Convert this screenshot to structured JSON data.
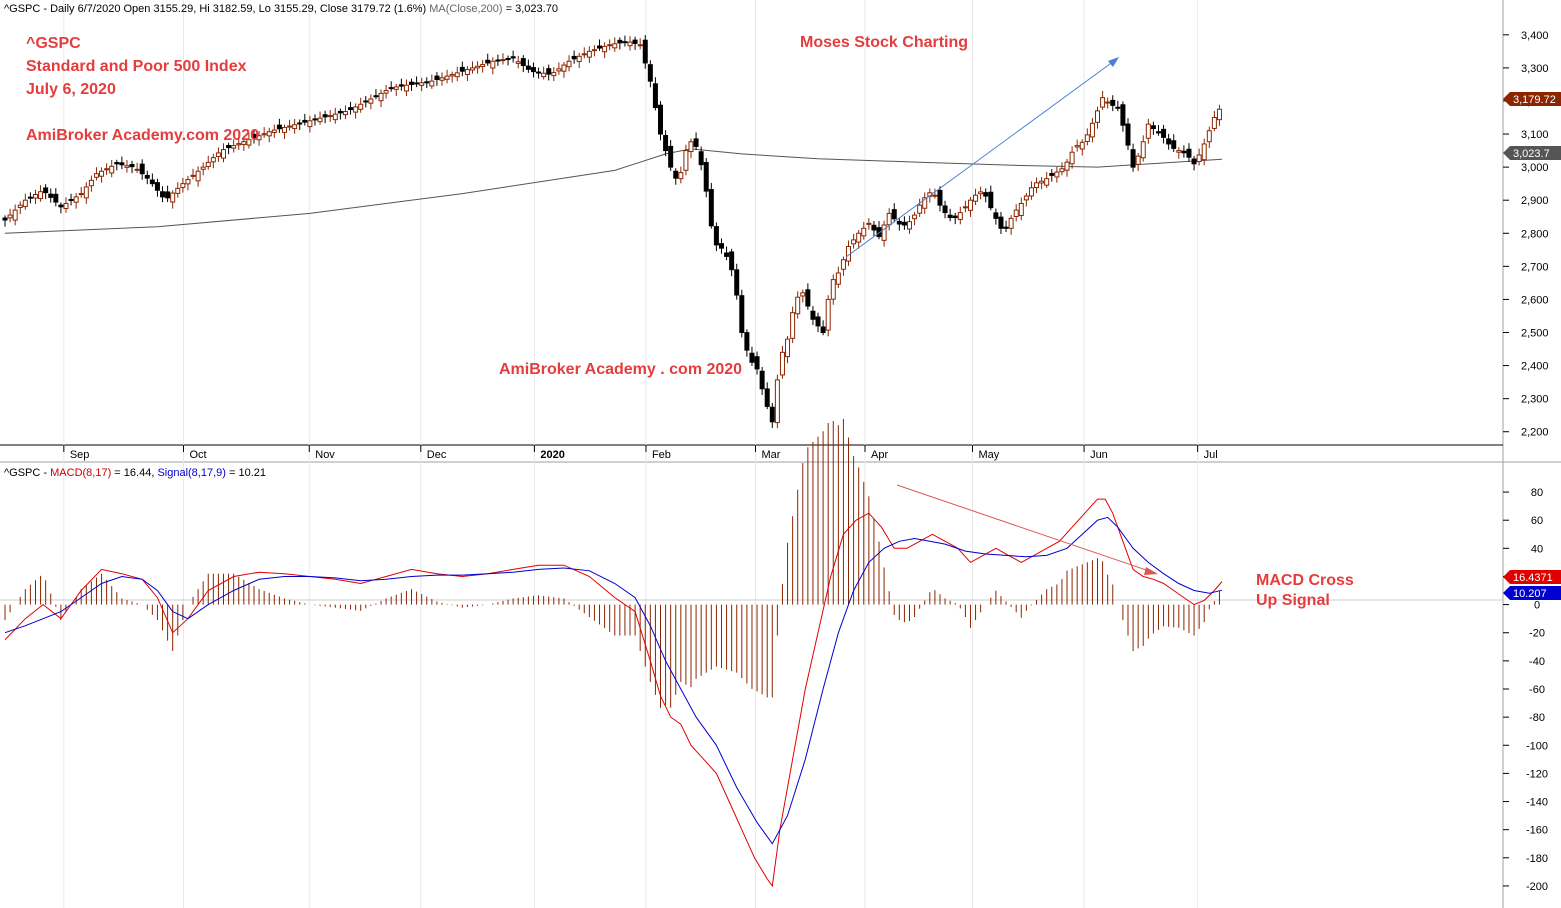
{
  "header": {
    "price_title": "^GSPC - Daily 6/7/2020 Open 3155.29, Hi 3182.59, Lo 3155.29, Close 3179.72 (1.6%)",
    "ma_label": "MA(Close,200)",
    "ma_value": " = 3,023.70",
    "macd_ticker": "^GSPC - ",
    "macd_label": "MACD(8,17)",
    "macd_value": " = 16.44, ",
    "signal_label": "Signal(8,17,9)",
    "signal_value": " = 10.21"
  },
  "annotations": {
    "ticker": "^GSPC",
    "index_name": "Standard and Poor 500 Index",
    "date": "July 6, 2020",
    "brand_top": "AmiBroker Academy.com  2020",
    "brand_top_right": "Moses Stock Charting",
    "brand_center": "AmiBroker Academy . com  2020",
    "macd_note_1": "MACD Cross",
    "macd_note_2": "Up Signal"
  },
  "badges": {
    "last_price": "3,179.72",
    "ma_last": "3,023.7",
    "macd_last": "16.4371",
    "signal_last": "10.207"
  },
  "colors": {
    "up_candle": "#8b2500",
    "down_candle": "#000000",
    "ma_line": "#555555",
    "macd_line": "#e00000",
    "signal_line": "#0000d0",
    "histogram": "#8b2500",
    "annotation": "#e53d3d",
    "trend_up_arrow": "#4a7fd4",
    "trend_down_arrow": "#e05555"
  },
  "chart_data": [
    {
      "type": "candlestick",
      "title": "^GSPC Daily",
      "x_labels": [
        "Sep",
        "Oct",
        "Nov",
        "Dec",
        "2020",
        "Feb",
        "Mar",
        "Apr",
        "May",
        "Jun",
        "Jul"
      ],
      "y_ticks": [
        "3,400",
        "3,300",
        "3,200",
        "3,100",
        "3,000",
        "2,900",
        "2,800",
        "2,700",
        "2,600",
        "2,500",
        "2,400",
        "2,300",
        "2,200"
      ],
      "ylim": [
        2175,
        3475
      ],
      "close_path": [
        [
          0,
          2840
        ],
        [
          8,
          2900
        ],
        [
          15,
          2930
        ],
        [
          22,
          2880
        ],
        [
          30,
          2920
        ],
        [
          36,
          2980
        ],
        [
          44,
          3010
        ],
        [
          51,
          3000
        ],
        [
          57,
          2960
        ],
        [
          63,
          2900
        ],
        [
          70,
          2950
        ],
        [
          78,
          3000
        ],
        [
          85,
          3050
        ],
        [
          95,
          3080
        ],
        [
          105,
          3110
        ],
        [
          115,
          3130
        ],
        [
          125,
          3150
        ],
        [
          135,
          3170
        ],
        [
          145,
          3210
        ],
        [
          152,
          3240
        ],
        [
          160,
          3250
        ],
        [
          168,
          3260
        ],
        [
          176,
          3280
        ],
        [
          184,
          3300
        ],
        [
          192,
          3320
        ],
        [
          200,
          3330
        ],
        [
          207,
          3290
        ],
        [
          215,
          3280
        ],
        [
          222,
          3320
        ],
        [
          230,
          3350
        ],
        [
          238,
          3370
        ],
        [
          245,
          3380
        ],
        [
          250,
          3370
        ],
        [
          254,
          3260
        ],
        [
          258,
          3100
        ],
        [
          262,
          3000
        ],
        [
          265,
          2950
        ],
        [
          268,
          3050
        ],
        [
          271,
          3090
        ],
        [
          275,
          2980
        ],
        [
          279,
          2770
        ],
        [
          283,
          2750
        ],
        [
          287,
          2670
        ],
        [
          290,
          2500
        ],
        [
          293,
          2420
        ],
        [
          296,
          2390
        ],
        [
          299,
          2300
        ],
        [
          302,
          2230
        ],
        [
          305,
          2420
        ],
        [
          308,
          2480
        ],
        [
          311,
          2600
        ],
        [
          314,
          2620
        ],
        [
          318,
          2540
        ],
        [
          322,
          2500
        ],
        [
          325,
          2650
        ],
        [
          328,
          2680
        ],
        [
          332,
          2760
        ],
        [
          336,
          2800
        ],
        [
          340,
          2830
        ],
        [
          344,
          2790
        ],
        [
          348,
          2860
        ],
        [
          353,
          2820
        ],
        [
          357,
          2840
        ],
        [
          361,
          2900
        ],
        [
          365,
          2930
        ],
        [
          369,
          2870
        ],
        [
          373,
          2840
        ],
        [
          377,
          2870
        ],
        [
          381,
          2910
        ],
        [
          385,
          2930
        ],
        [
          389,
          2860
        ],
        [
          393,
          2800
        ],
        [
          397,
          2860
        ],
        [
          401,
          2900
        ],
        [
          405,
          2950
        ],
        [
          409,
          2960
        ],
        [
          413,
          2980
        ],
        [
          417,
          3000
        ],
        [
          421,
          3060
        ],
        [
          425,
          3080
        ],
        [
          429,
          3150
        ],
        [
          432,
          3210
        ],
        [
          435,
          3190
        ],
        [
          438,
          3180
        ],
        [
          441,
          3100
        ],
        [
          444,
          3000
        ],
        [
          447,
          3050
        ],
        [
          450,
          3130
        ],
        [
          453,
          3110
        ],
        [
          456,
          3090
        ],
        [
          459,
          3060
        ],
        [
          462,
          3050
        ],
        [
          465,
          3040
        ],
        [
          468,
          3010
        ],
        [
          471,
          3050
        ],
        [
          474,
          3110
        ],
        [
          477,
          3170
        ],
        [
          479,
          3180
        ]
      ]
    },
    {
      "type": "line",
      "title": "MA(Close,200)",
      "path": [
        [
          0,
          2800
        ],
        [
          60,
          2820
        ],
        [
          120,
          2860
        ],
        [
          180,
          2920
        ],
        [
          240,
          2990
        ],
        [
          260,
          3040
        ],
        [
          270,
          3055
        ],
        [
          290,
          3040
        ],
        [
          320,
          3025
        ],
        [
          360,
          3015
        ],
        [
          400,
          3005
        ],
        [
          430,
          3000
        ],
        [
          479,
          3024
        ]
      ]
    },
    {
      "type": "line",
      "title": "MACD(8,17) / Signal(8,17,9)",
      "y_ticks": [
        "80",
        "60",
        "40",
        "20",
        "0",
        "-20",
        "-40",
        "-60",
        "-80",
        "-100",
        "-120",
        "-140",
        "-160",
        "-180",
        "-200"
      ],
      "ylim": [
        -210,
        90
      ],
      "series": [
        {
          "name": "MACD(8,17)",
          "values": [
            [
              0,
              -25
            ],
            [
              8,
              -10
            ],
            [
              15,
              0
            ],
            [
              22,
              -10
            ],
            [
              30,
              10
            ],
            [
              38,
              25
            ],
            [
              46,
              22
            ],
            [
              54,
              18
            ],
            [
              60,
              5
            ],
            [
              66,
              -20
            ],
            [
              72,
              -10
            ],
            [
              80,
              10
            ],
            [
              90,
              20
            ],
            [
              100,
              23
            ],
            [
              110,
              22
            ],
            [
              120,
              20
            ],
            [
              130,
              18
            ],
            [
              140,
              15
            ],
            [
              150,
              20
            ],
            [
              160,
              25
            ],
            [
              170,
              22
            ],
            [
              180,
              20
            ],
            [
              190,
              22
            ],
            [
              200,
              25
            ],
            [
              210,
              28
            ],
            [
              220,
              28
            ],
            [
              230,
              20
            ],
            [
              240,
              5
            ],
            [
              248,
              -5
            ],
            [
              254,
              -40
            ],
            [
              258,
              -65
            ],
            [
              262,
              -80
            ],
            [
              266,
              -85
            ],
            [
              270,
              -100
            ],
            [
              275,
              -110
            ],
            [
              280,
              -120
            ],
            [
              285,
              -140
            ],
            [
              290,
              -160
            ],
            [
              295,
              -180
            ],
            [
              300,
              -195
            ],
            [
              302,
              -200
            ],
            [
              305,
              -160
            ],
            [
              310,
              -110
            ],
            [
              315,
              -60
            ],
            [
              320,
              -20
            ],
            [
              325,
              20
            ],
            [
              330,
              50
            ],
            [
              335,
              60
            ],
            [
              340,
              65
            ],
            [
              345,
              55
            ],
            [
              350,
              40
            ],
            [
              355,
              40
            ],
            [
              360,
              45
            ],
            [
              365,
              50
            ],
            [
              370,
              45
            ],
            [
              375,
              40
            ],
            [
              380,
              30
            ],
            [
              385,
              35
            ],
            [
              390,
              40
            ],
            [
              395,
              35
            ],
            [
              400,
              30
            ],
            [
              405,
              35
            ],
            [
              410,
              40
            ],
            [
              415,
              45
            ],
            [
              420,
              55
            ],
            [
              425,
              65
            ],
            [
              430,
              75
            ],
            [
              433,
              75
            ],
            [
              436,
              65
            ],
            [
              440,
              45
            ],
            [
              444,
              25
            ],
            [
              448,
              20
            ],
            [
              452,
              18
            ],
            [
              456,
              15
            ],
            [
              460,
              10
            ],
            [
              464,
              5
            ],
            [
              468,
              0
            ],
            [
              472,
              3
            ],
            [
              476,
              10
            ],
            [
              479,
              16.44
            ]
          ]
        },
        {
          "name": "Signal(8,17,9)",
          "values": [
            [
              0,
              -20
            ],
            [
              8,
              -15
            ],
            [
              15,
              -10
            ],
            [
              22,
              -5
            ],
            [
              30,
              5
            ],
            [
              38,
              15
            ],
            [
              46,
              20
            ],
            [
              54,
              18
            ],
            [
              60,
              10
            ],
            [
              66,
              -5
            ],
            [
              72,
              -10
            ],
            [
              80,
              0
            ],
            [
              90,
              10
            ],
            [
              100,
              18
            ],
            [
              110,
              20
            ],
            [
              120,
              20
            ],
            [
              130,
              19
            ],
            [
              140,
              17
            ],
            [
              150,
              18
            ],
            [
              160,
              20
            ],
            [
              170,
              21
            ],
            [
              180,
              21
            ],
            [
              190,
              22
            ],
            [
              200,
              23
            ],
            [
              210,
              25
            ],
            [
              220,
              26
            ],
            [
              230,
              24
            ],
            [
              240,
              15
            ],
            [
              248,
              5
            ],
            [
              254,
              -15
            ],
            [
              260,
              -40
            ],
            [
              266,
              -60
            ],
            [
              272,
              -80
            ],
            [
              280,
              -100
            ],
            [
              288,
              -130
            ],
            [
              296,
              -155
            ],
            [
              302,
              -170
            ],
            [
              308,
              -150
            ],
            [
              315,
              -110
            ],
            [
              322,
              -60
            ],
            [
              328,
              -20
            ],
            [
              334,
              10
            ],
            [
              340,
              30
            ],
            [
              346,
              40
            ],
            [
              352,
              45
            ],
            [
              358,
              47
            ],
            [
              364,
              45
            ],
            [
              370,
              43
            ],
            [
              378,
              38
            ],
            [
              386,
              36
            ],
            [
              394,
              35
            ],
            [
              402,
              34
            ],
            [
              410,
              35
            ],
            [
              418,
              40
            ],
            [
              424,
              50
            ],
            [
              430,
              60
            ],
            [
              434,
              62
            ],
            [
              438,
              55
            ],
            [
              444,
              40
            ],
            [
              450,
              30
            ],
            [
              456,
              22
            ],
            [
              462,
              15
            ],
            [
              468,
              10
            ],
            [
              474,
              8
            ],
            [
              479,
              10.21
            ]
          ]
        }
      ]
    }
  ]
}
